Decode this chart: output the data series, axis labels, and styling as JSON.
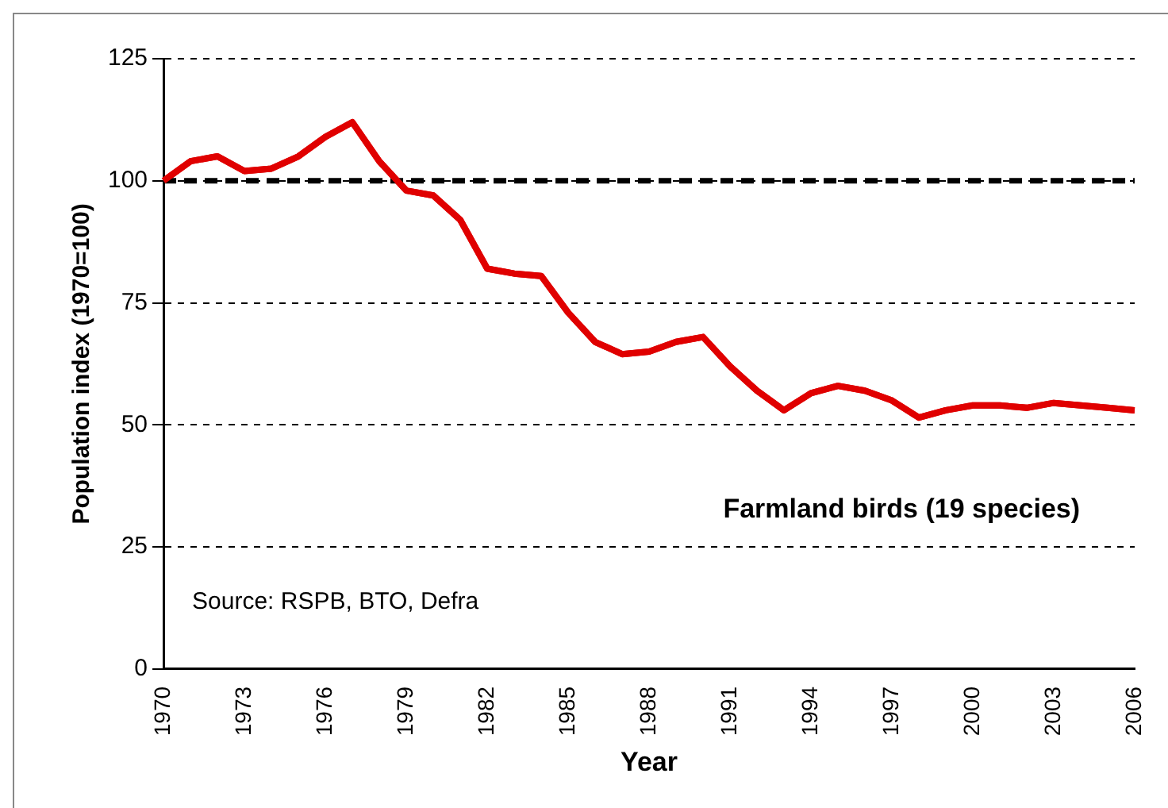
{
  "chart_data": {
    "type": "line",
    "xlabel": "Year",
    "ylabel": "Population index (1970=100)",
    "x": [
      1970,
      1971,
      1972,
      1973,
      1974,
      1975,
      1976,
      1977,
      1978,
      1979,
      1980,
      1981,
      1982,
      1983,
      1984,
      1985,
      1986,
      1987,
      1988,
      1989,
      1990,
      1991,
      1992,
      1993,
      1994,
      1995,
      1996,
      1997,
      1998,
      1999,
      2000,
      2001,
      2002,
      2003,
      2004,
      2005,
      2006
    ],
    "series": [
      {
        "color": "#e00000",
        "values": [
          100,
          104,
          105,
          102,
          102.5,
          105,
          109,
          112,
          104,
          98,
          97,
          92,
          82,
          81,
          80.5,
          73,
          67,
          64.5,
          65,
          67,
          68,
          62,
          57,
          53,
          56.5,
          58,
          57,
          55,
          51.5,
          53,
          54,
          54,
          53.5,
          54.5,
          54,
          53.5,
          53
        ]
      }
    ],
    "xlim": [
      1970,
      2006
    ],
    "xticks": [
      1970,
      1973,
      1976,
      1979,
      1982,
      1985,
      1988,
      1991,
      1994,
      1997,
      2000,
      2003,
      2006
    ],
    "ylim": [
      0,
      125
    ],
    "yticks": [
      0,
      25,
      50,
      75,
      100,
      125
    ],
    "grid": "y",
    "marker": "none",
    "line_style": "solid",
    "ref_lines": [
      {
        "axis": "y",
        "value": 100,
        "color": "#000000",
        "line_style": "dashed"
      }
    ],
    "annotations": [
      "Farmland birds (19 species)",
      "Source: RSPB, BTO, Defra"
    ]
  }
}
